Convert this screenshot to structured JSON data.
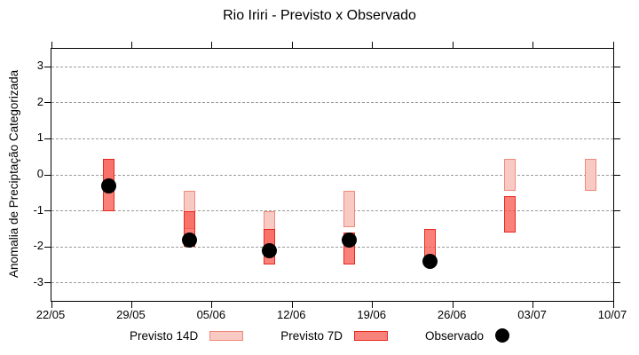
{
  "title": "Rio Iriri - Previsto x Observado",
  "colors": {
    "previsto14_fill": "#f9cac4",
    "previsto14_border": "#f0897b",
    "previsto7_fill": "rgba(246,80,70,0.72)",
    "previsto7_fill_flat": "#f8837b",
    "previsto7_border": "#e8281e",
    "observado": "#000000",
    "grid": "#9a9a9a",
    "axis": "#000000"
  },
  "legend": {
    "items": [
      {
        "label": "Previsto 14D",
        "swatch": "range-14d"
      },
      {
        "label": "Previsto 7D",
        "swatch": "range-7d"
      },
      {
        "label": "Observado",
        "swatch": "dot"
      }
    ]
  },
  "chart_data": {
    "type": "range-bar+scatter",
    "title": "Rio Iriri - Previsto x Observado",
    "xlabel": "",
    "ylabel": "Anomalia de Preciptação Categorizada",
    "ylim": [
      -3.5,
      3.5
    ],
    "yticks": [
      3,
      2,
      1,
      0,
      -1,
      -2,
      -3
    ],
    "xtick_labels": [
      "22/05",
      "29/05",
      "05/06",
      "12/06",
      "19/06",
      "26/06",
      "03/07",
      "10/07"
    ],
    "xtick_days": [
      0,
      7,
      14,
      21,
      28,
      35,
      42,
      49
    ],
    "xlim_days": [
      0,
      49
    ],
    "grid": "horizontal-dashed",
    "legend_position": "bottom",
    "bar_width_days": 1,
    "categories": [
      "27/05",
      "03/06",
      "10/06",
      "17/06",
      "24/06",
      "01/07",
      "08/07"
    ],
    "category_days": [
      5,
      12,
      19,
      26,
      33,
      40,
      47
    ],
    "series": [
      {
        "name": "Previsto 14D",
        "type": "range",
        "ranges": [
          [
            0.45,
            -0.45
          ],
          [
            -0.45,
            -1.5
          ],
          [
            -1.0,
            -2.0
          ],
          [
            -0.45,
            -1.45
          ],
          null,
          [
            0.45,
            -0.45
          ],
          [
            0.45,
            -0.45
          ]
        ]
      },
      {
        "name": "Previsto 7D",
        "type": "range",
        "ranges": [
          [
            0.45,
            -1.0
          ],
          [
            -1.0,
            -2.0
          ],
          [
            -1.5,
            -2.5
          ],
          [
            -1.6,
            -2.5
          ],
          [
            -1.5,
            -2.5
          ],
          [
            -0.6,
            -1.6
          ],
          null
        ]
      },
      {
        "name": "Observado",
        "type": "scatter",
        "values": [
          -0.3,
          -1.8,
          -2.1,
          -1.8,
          -2.4,
          null,
          null
        ]
      }
    ]
  }
}
